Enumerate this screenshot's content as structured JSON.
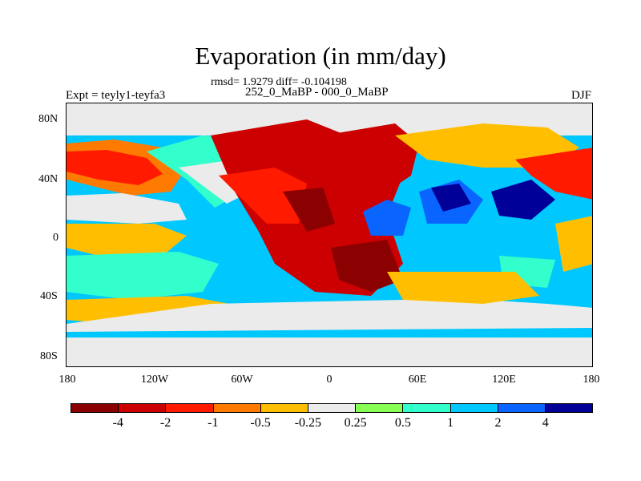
{
  "title": "Evaporation (in mm/day)",
  "stats": "rmsd= 1.9279 diff= -0.104198",
  "left_subtitle": "Expt = teyly1-teyfa3",
  "center_subtitle": "252_0_MaBP - 000_0_MaBP",
  "season": "DJF",
  "y_ticks": [
    "80N",
    "40N",
    "0",
    "40S",
    "80S"
  ],
  "x_ticks": [
    "180",
    "120W",
    "60W",
    "0",
    "60E",
    "120E",
    "180"
  ],
  "colorbar": {
    "colors": [
      "#8b0000",
      "#cc0000",
      "#ff1a00",
      "#ff7a00",
      "#ffbf00",
      "#ebebeb",
      "#88ff55",
      "#33ffcc",
      "#00c8ff",
      "#0a64ff",
      "#000099"
    ],
    "labels": [
      "-4",
      "-2",
      "-1",
      "-0.5",
      "-0.25",
      "0.25",
      "0.5",
      "1",
      "2",
      "4"
    ]
  }
}
